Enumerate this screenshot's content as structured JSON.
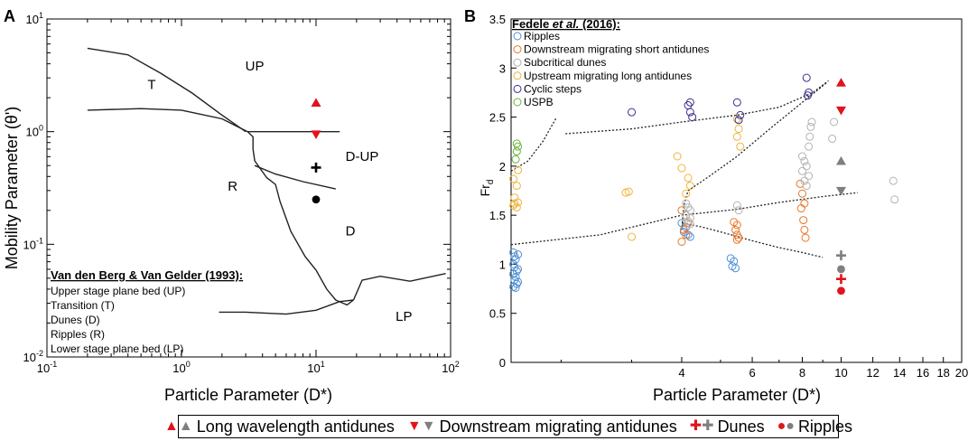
{
  "panel_labels": {
    "a": "A",
    "b": "B"
  },
  "colors": {
    "red": "#e0141c",
    "gray": "#7f7f7f",
    "ripples": "#4f8fd6",
    "downstream_short": "#e8772a",
    "subcritical": "#b3b3b3",
    "upstream_long": "#f0b43c",
    "cyclic": "#3b2f8f",
    "uspb": "#6ab43c"
  },
  "chart_data": [
    {
      "id": "A",
      "type": "line",
      "title": "",
      "xscale": "log",
      "yscale": "log",
      "xlim": [
        0.1,
        100
      ],
      "ylim": [
        0.01,
        10
      ],
      "xlabel": "Particle Parameter (D*)",
      "ylabel": "Mobility Parameter (θ')",
      "xticks": [
        {
          "v": 0.1,
          "base": "10",
          "exp": "-1"
        },
        {
          "v": 1,
          "base": "10",
          "exp": "0"
        },
        {
          "v": 10,
          "base": "10",
          "exp": "1"
        },
        {
          "v": 100,
          "base": "10",
          "exp": "2"
        }
      ],
      "yticks": [
        {
          "v": 0.01,
          "base": "10",
          "exp": "-2"
        },
        {
          "v": 0.1,
          "base": "10",
          "exp": "-1"
        },
        {
          "v": 1,
          "base": "10",
          "exp": "0"
        },
        {
          "v": 10,
          "base": "10",
          "exp": "1"
        }
      ],
      "boundaries": [
        {
          "name": "t-up-upper",
          "points": [
            [
              0.2,
              5.5
            ],
            [
              0.4,
              4.8
            ],
            [
              0.7,
              3.3
            ],
            [
              1.2,
              2.2
            ],
            [
              2.0,
              1.4
            ],
            [
              3.0,
              1.0
            ]
          ]
        },
        {
          "name": "t-r-lower",
          "points": [
            [
              0.2,
              1.55
            ],
            [
              0.5,
              1.6
            ],
            [
              1.0,
              1.55
            ],
            [
              2.0,
              1.3
            ],
            [
              3.1,
              1.0
            ]
          ]
        },
        {
          "name": "up-dup",
          "points": [
            [
              3.1,
              1.0
            ],
            [
              15,
              1.0
            ]
          ]
        },
        {
          "name": "r-d-left",
          "points": [
            [
              3.1,
              1.0
            ],
            [
              3.4,
              0.9
            ],
            [
              3.4,
              0.7
            ],
            [
              3.5,
              0.55
            ],
            [
              4.3,
              0.39
            ],
            [
              5.0,
              0.34
            ],
            [
              5.4,
              0.24
            ],
            [
              6.5,
              0.13
            ],
            [
              8.3,
              0.078
            ],
            [
              10,
              0.059
            ],
            [
              12,
              0.04
            ],
            [
              14,
              0.032
            ],
            [
              17,
              0.029
            ],
            [
              19,
              0.032
            ]
          ]
        },
        {
          "name": "dup-d",
          "points": [
            [
              3.5,
              0.5
            ],
            [
              5.0,
              0.42
            ],
            [
              8.0,
              0.36
            ],
            [
              14,
              0.31
            ]
          ]
        },
        {
          "name": "d-lp",
          "points": [
            [
              19,
              0.032
            ],
            [
              22,
              0.048
            ],
            [
              30,
              0.052
            ],
            [
              50,
              0.047
            ],
            [
              92,
              0.055
            ]
          ]
        },
        {
          "name": "r-lp",
          "points": [
            [
              1.9,
              0.025
            ],
            [
              3.0,
              0.025
            ],
            [
              6.0,
              0.024
            ],
            [
              10,
              0.026
            ],
            [
              15,
              0.031
            ],
            [
              19,
              0.032
            ]
          ]
        }
      ],
      "regions": [
        {
          "label": "T",
          "x": 0.6,
          "y": 2.4
        },
        {
          "label": "UP",
          "x": 3.5,
          "y": 3.5
        },
        {
          "label": "D-UP",
          "x": 22,
          "y": 0.55
        },
        {
          "label": "R",
          "x": 2.4,
          "y": 0.3
        },
        {
          "label": "D",
          "x": 18,
          "y": 0.12
        },
        {
          "label": "LP",
          "x": 45,
          "y": 0.021
        }
      ],
      "points": [
        {
          "series": "Long wavelength antidunes",
          "x": 10,
          "y": 1.8,
          "marker": "triangle-up",
          "color": "red"
        },
        {
          "series": "Downstream migrating antidunes",
          "x": 10,
          "y": 0.95,
          "marker": "triangle-down",
          "color": "red"
        },
        {
          "series": "Dunes",
          "x": 10,
          "y": 0.48,
          "marker": "plus",
          "color": "black"
        },
        {
          "series": "Ripples",
          "x": 10,
          "y": 0.25,
          "marker": "circle",
          "color": "black"
        }
      ],
      "legend": {
        "title": "Van den Berg & Van Gelder (1993):",
        "entries": [
          "Upper stage plane bed (UP)",
          "Transition (T)",
          "Dunes (D)",
          "Ripples (R)",
          "Lower stage plane bed (LP)"
        ]
      }
    },
    {
      "id": "B",
      "type": "scatter",
      "title": "",
      "xscale": "log",
      "xlim": [
        1.5,
        20
      ],
      "ylim": [
        0,
        3.5
      ],
      "xlabel": "Particle Parameter (D*)",
      "ylabel": "Fr",
      "ylabel_sub": "d",
      "xtick_labels": [
        "4",
        "6",
        "8",
        "10",
        "12",
        "14",
        "16",
        "18",
        "20"
      ],
      "xtick_values": [
        4,
        6,
        8,
        10,
        12,
        14,
        16,
        18,
        20
      ],
      "yticks": [
        "0",
        "0.5",
        "1",
        "1.5",
        "2",
        "2.5",
        "3",
        "3.5"
      ],
      "legend": {
        "title_prefix": "Fedele ",
        "title_italic": "et al.",
        "title_suffix": " (2016):",
        "entries": [
          "Ripples",
          "Downstream migrating short antidunes",
          "Subcritical dunes",
          "Upstream migrating long antidunes",
          "Cyclic steps",
          "USPB"
        ]
      },
      "series": [
        {
          "name": "Ripples",
          "color_key": "ripples",
          "points": [
            [
              1.52,
              1.12
            ],
            [
              1.53,
              1.08
            ],
            [
              1.54,
              1.05
            ],
            [
              1.52,
              1.0
            ],
            [
              1.53,
              0.97
            ],
            [
              1.55,
              0.93
            ],
            [
              1.52,
              0.9
            ],
            [
              1.54,
              0.87
            ],
            [
              1.53,
              0.84
            ],
            [
              1.55,
              0.8
            ],
            [
              1.52,
              0.77
            ],
            [
              1.54,
              0.76
            ],
            [
              1.56,
              1.1
            ],
            [
              1.56,
              0.95
            ],
            [
              1.56,
              0.82
            ],
            [
              4.0,
              1.42
            ],
            [
              4.1,
              1.38
            ],
            [
              4.05,
              1.33
            ],
            [
              4.15,
              1.3
            ],
            [
              4.2,
              1.28
            ],
            [
              5.3,
              1.06
            ],
            [
              5.4,
              1.03
            ],
            [
              5.35,
              0.98
            ],
            [
              5.45,
              0.96
            ]
          ]
        },
        {
          "name": "Downstream migrating short antidunes",
          "color_key": "downstream_short",
          "points": [
            [
              4.0,
              1.55
            ],
            [
              4.1,
              1.5
            ],
            [
              4.15,
              1.42
            ],
            [
              4.05,
              1.35
            ],
            [
              4.0,
              1.23
            ],
            [
              4.1,
              1.3
            ],
            [
              5.4,
              1.43
            ],
            [
              5.5,
              1.4
            ],
            [
              5.45,
              1.35
            ],
            [
              5.5,
              1.3
            ],
            [
              5.55,
              1.27
            ],
            [
              5.5,
              1.25
            ],
            [
              7.9,
              1.82
            ],
            [
              8.0,
              1.72
            ],
            [
              8.1,
              1.62
            ],
            [
              7.95,
              1.57
            ],
            [
              8.05,
              1.45
            ],
            [
              8.1,
              1.35
            ],
            [
              8.15,
              1.27
            ]
          ]
        },
        {
          "name": "Subcritical dunes",
          "color_key": "subcritical",
          "points": [
            [
              4.1,
              1.62
            ],
            [
              4.15,
              1.58
            ],
            [
              4.2,
              1.55
            ],
            [
              4.1,
              1.5
            ],
            [
              4.2,
              1.47
            ],
            [
              4.15,
              1.44
            ],
            [
              4.2,
              1.41
            ],
            [
              5.5,
              1.6
            ],
            [
              5.55,
              1.55
            ],
            [
              8.0,
              2.1
            ],
            [
              8.1,
              2.05
            ],
            [
              8.2,
              2.0
            ],
            [
              8.0,
              1.95
            ],
            [
              8.3,
              1.9
            ],
            [
              8.1,
              1.85
            ],
            [
              8.2,
              1.8
            ],
            [
              8.35,
              2.3
            ],
            [
              8.4,
              2.4
            ],
            [
              8.45,
              2.45
            ],
            [
              8.3,
              2.2
            ],
            [
              9.6,
              2.45
            ],
            [
              9.5,
              2.28
            ],
            [
              13.5,
              1.85
            ],
            [
              13.6,
              1.66
            ]
          ]
        },
        {
          "name": "Upstream migrating long antidunes",
          "color_key": "upstream_long",
          "points": [
            [
              1.52,
              1.87
            ],
            [
              1.55,
              1.8
            ],
            [
              1.53,
              1.68
            ],
            [
              1.56,
              1.63
            ],
            [
              1.52,
              1.6
            ],
            [
              1.55,
              1.58
            ],
            [
              1.53,
              1.62
            ],
            [
              1.56,
              1.96
            ],
            [
              2.9,
              1.73
            ],
            [
              2.95,
              1.74
            ],
            [
              3.0,
              1.28
            ],
            [
              3.9,
              2.1
            ],
            [
              4.0,
              1.98
            ],
            [
              4.15,
              1.88
            ],
            [
              4.2,
              1.8
            ],
            [
              4.1,
              1.72
            ],
            [
              5.5,
              2.48
            ],
            [
              5.55,
              2.38
            ],
            [
              5.5,
              2.3
            ],
            [
              5.6,
              2.2
            ]
          ]
        },
        {
          "name": "Cyclic steps",
          "color_key": "cyclic",
          "points": [
            [
              3.0,
              2.55
            ],
            [
              4.2,
              2.65
            ],
            [
              4.15,
              2.62
            ],
            [
              4.2,
              2.55
            ],
            [
              4.25,
              2.5
            ],
            [
              5.5,
              2.65
            ],
            [
              5.6,
              2.52
            ],
            [
              5.55,
              2.47
            ],
            [
              8.2,
              2.9
            ],
            [
              8.3,
              2.75
            ],
            [
              8.25,
              2.72
            ]
          ]
        },
        {
          "name": "USPB",
          "color_key": "uspb",
          "points": [
            [
              1.55,
              2.23
            ],
            [
              1.56,
              2.2
            ],
            [
              1.55,
              2.15
            ],
            [
              1.54,
              2.07
            ]
          ]
        }
      ],
      "filled_points": [
        {
          "series": "Long wavelength antidunes",
          "x": 10,
          "y": 2.85,
          "marker": "triangle-up",
          "color": "red"
        },
        {
          "series": "Long wavelength antidunes",
          "x": 10,
          "y": 2.05,
          "marker": "triangle-up",
          "color": "gray"
        },
        {
          "series": "Downstream migrating antidunes",
          "x": 10,
          "y": 2.57,
          "marker": "triangle-down",
          "color": "red"
        },
        {
          "series": "Downstream migrating antidunes",
          "x": 10,
          "y": 1.75,
          "marker": "triangle-down",
          "color": "gray"
        },
        {
          "series": "Dunes",
          "x": 10,
          "y": 1.09,
          "marker": "plus",
          "color": "gray"
        },
        {
          "series": "Dunes",
          "x": 10,
          "y": 0.85,
          "marker": "plus",
          "color": "red"
        },
        {
          "series": "Ripples",
          "x": 10,
          "y": 0.95,
          "marker": "circle",
          "color": "gray"
        },
        {
          "series": "Ripples",
          "x": 10,
          "y": 0.73,
          "marker": "circle",
          "color": "red"
        }
      ],
      "boundaries": [
        {
          "name": "uspb-boundary",
          "points": [
            [
              1.5,
              1.95
            ],
            [
              1.65,
              2.05
            ],
            [
              1.8,
              2.25
            ],
            [
              1.95,
              2.5
            ]
          ]
        },
        {
          "name": "cyclic-upper",
          "points": [
            [
              2.05,
              2.33
            ],
            [
              3.0,
              2.38
            ],
            [
              4.0,
              2.45
            ],
            [
              5.5,
              2.52
            ],
            [
              7.0,
              2.6
            ],
            [
              8.5,
              2.75
            ],
            [
              9.3,
              2.87
            ]
          ]
        },
        {
          "name": "antidune-upper",
          "points": [
            [
              4.0,
              1.35
            ],
            [
              4.05,
              1.6
            ],
            [
              4.15,
              1.75
            ],
            [
              4.7,
              1.9
            ],
            [
              5.5,
              2.1
            ],
            [
              6.5,
              2.35
            ],
            [
              8.0,
              2.65
            ],
            [
              9.2,
              2.85
            ]
          ]
        },
        {
          "name": "dune-antidune",
          "points": [
            [
              1.5,
              1.2
            ],
            [
              2.5,
              1.3
            ],
            [
              4.0,
              1.5
            ],
            [
              5.5,
              1.56
            ],
            [
              7.0,
              1.63
            ],
            [
              9.0,
              1.69
            ],
            [
              11,
              1.73
            ]
          ]
        },
        {
          "name": "ripple-dune",
          "points": [
            [
              4.0,
              1.42
            ],
            [
              4.5,
              1.38
            ],
            [
              5.0,
              1.33
            ],
            [
              6.0,
              1.24
            ],
            [
              7.0,
              1.17
            ],
            [
              8.0,
              1.12
            ],
            [
              9.0,
              1.07
            ]
          ]
        }
      ]
    }
  ],
  "bottom_legend": [
    {
      "label": "Long wavelength antidunes",
      "symbol": "triangle-up"
    },
    {
      "label": "Downstream migrating antidunes",
      "symbol": "triangle-down"
    },
    {
      "label": "Dunes",
      "symbol": "plus"
    },
    {
      "label": "Ripples",
      "symbol": "circle"
    }
  ]
}
